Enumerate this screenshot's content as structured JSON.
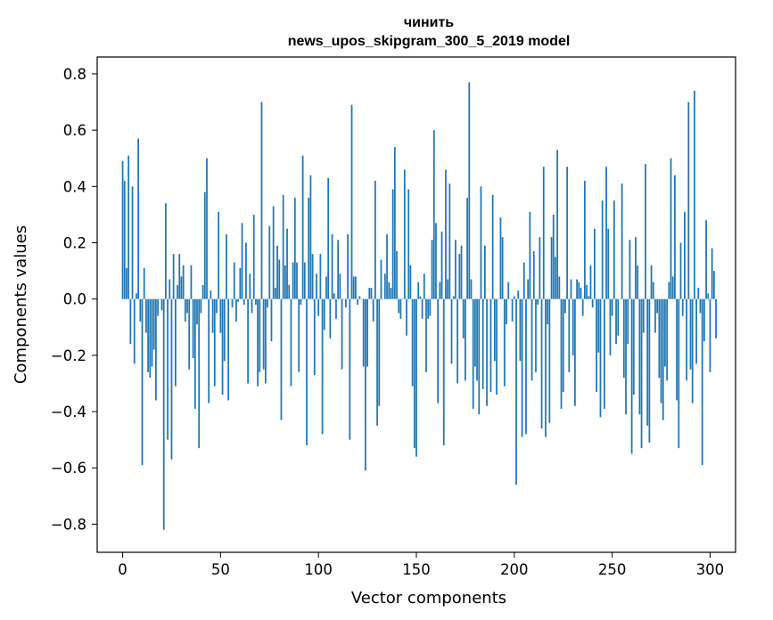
{
  "chart_data": {
    "type": "bar",
    "title": "чинить",
    "subtitle": "news_upos_skipgram_300_5_2019 model",
    "xlabel": "Vector components",
    "ylabel": "Components values",
    "xlim": [
      -13,
      313
    ],
    "ylim": [
      -0.9,
      0.86
    ],
    "xticks": [
      0,
      50,
      100,
      150,
      200,
      250,
      300
    ],
    "yticks": [
      -0.8,
      -0.6,
      -0.4,
      -0.2,
      0.0,
      0.2,
      0.4,
      0.6,
      0.8
    ],
    "ytick_labels": [
      "−0.8",
      "−0.6",
      "−0.4",
      "−0.2",
      "0.0",
      "0.2",
      "0.4",
      "0.6",
      "0.8"
    ],
    "grid": false,
    "color": "#1f77b4",
    "values": [
      0.49,
      0.42,
      0.11,
      0.51,
      -0.16,
      0.4,
      -0.23,
      0.02,
      0.57,
      -0.08,
      -0.59,
      0.11,
      -0.12,
      -0.26,
      -0.28,
      -0.24,
      -0.18,
      -0.36,
      -0.06,
      0.0,
      -0.04,
      -0.82,
      0.34,
      -0.5,
      0.07,
      -0.57,
      0.16,
      -0.31,
      0.05,
      0.16,
      0.08,
      0.12,
      -0.08,
      -0.05,
      -0.25,
      0.12,
      -0.21,
      -0.39,
      -0.09,
      -0.53,
      -0.05,
      0.05,
      0.38,
      0.5,
      -0.37,
      0.03,
      -0.12,
      -0.31,
      -0.05,
      0.31,
      -0.12,
      -0.34,
      -0.22,
      0.23,
      -0.36,
      0.0,
      -0.03,
      0.13,
      -0.08,
      -0.01,
      0.11,
      0.27,
      -0.02,
      0.2,
      -0.3,
      0.09,
      -0.05,
      0.3,
      -0.02,
      -0.31,
      -0.26,
      0.7,
      -0.25,
      -0.3,
      -0.03,
      0.26,
      -0.15,
      0.33,
      0.04,
      0.19,
      0.14,
      -0.43,
      0.37,
      0.12,
      0.25,
      0.05,
      -0.31,
      0.13,
      0.36,
      0.13,
      -0.26,
      -0.02,
      0.51,
      0.13,
      -0.52,
      0.36,
      0.44,
      0.16,
      -0.27,
      0.09,
      -0.06,
      0.16,
      -0.48,
      -0.11,
      0.08,
      0.43,
      -0.14,
      0.23,
      0.02,
      -0.07,
      0.21,
      0.09,
      -0.25,
      0.0,
      -0.03,
      0.23,
      -0.5,
      0.69,
      0.08,
      0.08,
      -0.02,
      0.01,
      0.0,
      -0.24,
      -0.61,
      -0.24,
      0.04,
      0.04,
      -0.08,
      0.42,
      -0.45,
      -0.38,
      0.14,
      0.0,
      0.09,
      0.23,
      0.06,
      0.04,
      0.39,
      0.54,
      0.17,
      -0.05,
      -0.07,
      0.0,
      0.46,
      -0.13,
      0.39,
      0.12,
      -0.31,
      -0.53,
      -0.56,
      0.06,
      0.01,
      -0.07,
      0.09,
      -0.26,
      -0.07,
      -0.06,
      0.21,
      0.6,
      0.27,
      -0.37,
      0.06,
      0.24,
      -0.52,
      0.46,
      0.07,
      0.41,
      -0.23,
      0.01,
      0.21,
      -0.3,
      0.16,
      0.19,
      -0.14,
      -0.29,
      0.36,
      0.77,
      0.07,
      -0.39,
      -0.24,
      -0.29,
      -0.41,
      0.4,
      -0.32,
      0.19,
      -0.38,
      0.0,
      -0.33,
      0.37,
      -0.22,
      -0.34,
      0.0,
      0.29,
      0.22,
      -0.31,
      -0.09,
      0.06,
      0.0,
      -0.08,
      0.01,
      -0.66,
      0.03,
      -0.22,
      -0.49,
      0.13,
      -0.48,
      0.07,
      0.31,
      -0.29,
      0.17,
      -0.26,
      -0.02,
      0.22,
      -0.46,
      0.47,
      -0.49,
      -0.09,
      -0.44,
      0.22,
      0.3,
      0.15,
      0.53,
      0.08,
      -0.39,
      -0.33,
      -0.05,
      0.47,
      -0.26,
      0.07,
      -0.2,
      -0.38,
      0.07,
      0.06,
      0.04,
      -0.06,
      0.42,
      0.05,
      0.01,
      0.12,
      -0.03,
      0.25,
      -0.33,
      -0.19,
      -0.42,
      0.35,
      -0.39,
      0.47,
      0.25,
      -0.2,
      -0.06,
      0.35,
      -0.16,
      -0.13,
      0.0,
      0.41,
      -0.28,
      -0.41,
      -0.16,
      0.21,
      -0.55,
      -0.34,
      0.22,
      0.12,
      -0.41,
      -0.53,
      -0.12,
      0.48,
      -0.45,
      -0.51,
      0.12,
      0.06,
      -0.12,
      -0.05,
      -0.28,
      -0.37,
      -0.43,
      -0.24,
      -0.29,
      0.06,
      0.5,
      0.08,
      0.44,
      -0.36,
      -0.53,
      0.2,
      -0.06,
      0.31,
      -0.29,
      0.7,
      -0.25,
      -0.37,
      0.74,
      -0.23,
      0.04,
      -0.05,
      -0.59,
      -0.15,
      0.28,
      0.02,
      -0.26,
      0.18,
      0.1,
      -0.14
    ]
  }
}
